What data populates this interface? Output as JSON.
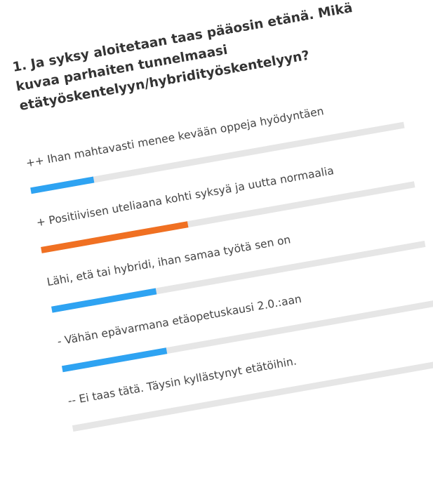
{
  "question": {
    "title": "1. Ja syksy aloitetaan taas pääosin etänä. Mikä kuvaa parhaiten tunnelmaasi etätyöskentelyyn/hybridityöskentelyyn?"
  },
  "options": [
    {
      "label": "++ Ihan mahtavasti menee kevään oppeja hyödyntäen",
      "percent": 15,
      "color": "#2ea3f2"
    },
    {
      "label": "+ Positiivisen uteliaana kohti syksyä ja uutta normaalia",
      "percent": 35,
      "color": "#f07022"
    },
    {
      "label": "Lähi, etä tai hybridi, ihan samaa työtä sen on",
      "percent": 25,
      "color": "#2ea3f2"
    },
    {
      "label": "- Vähän epävarmana etäopetuskausi 2.0.:aan",
      "percent": 25,
      "color": "#2ea3f2"
    },
    {
      "label": "-- Ei taas tätä. Täysin kyllästynyt etätöihin.",
      "percent": 0,
      "color": "#2ea3f2"
    }
  ],
  "colors": {
    "track": "#e6e6e6",
    "text": "#333333"
  }
}
